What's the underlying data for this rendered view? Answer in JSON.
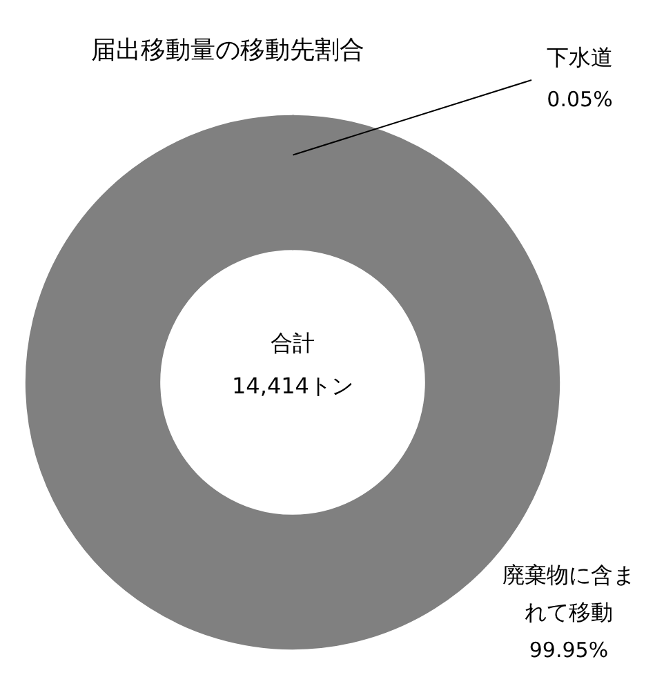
{
  "chart_data": {
    "type": "donut",
    "title": "届出移動量の移動先割合",
    "categories": [
      "下水道",
      "廃棄物に含まれて移動"
    ],
    "values": [
      0.05,
      99.95
    ],
    "value_labels": [
      "0.05%",
      "99.95%"
    ],
    "colors": [
      "#000000",
      "#808080"
    ],
    "annotations": [
      "合計",
      "14,414トン"
    ]
  }
}
